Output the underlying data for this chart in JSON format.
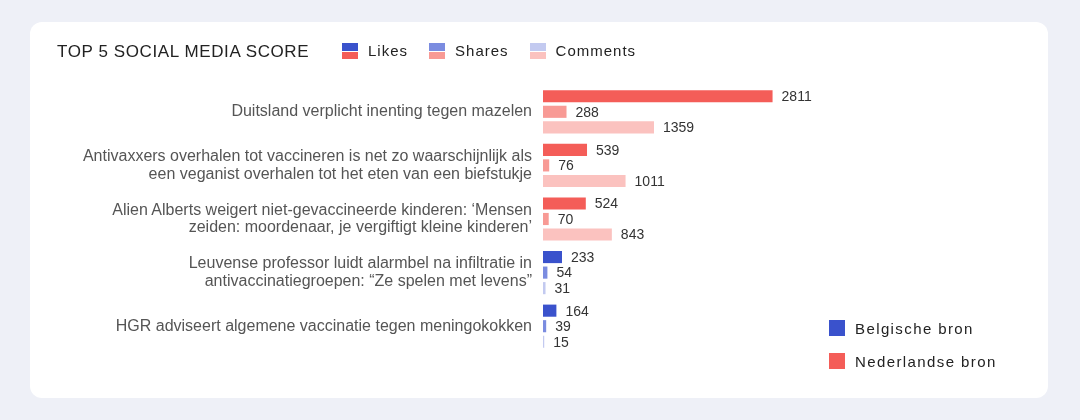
{
  "chart_data": {
    "type": "bar",
    "orientation": "horizontal",
    "title": "TOP 5 SOCIAL MEDIA SCORE",
    "categories": [
      "Duitsland verplicht inenting tegen mazelen",
      "Antivaxxers overhalen tot vaccineren is net zo waarschijnlijk als een veganist overhalen tot het eten van een biefstukje",
      "Alien Alberts weigert niet-gevaccineerde kinderen: ‘Mensen zeiden: moordenaar, je vergiftigt kleine kinderen’",
      "Leuvense professor luidt alarmbel na infiltratie in antivaccinatiegroepen: “Ze spelen met levens”",
      "HGR adviseert algemene vaccinatie tegen meningokokken"
    ],
    "series": [
      {
        "name": "Likes",
        "colors": [
          "#f45d58",
          "#f45d58",
          "#f45d58",
          "#3a52cc",
          "#3a52cc"
        ],
        "values": [
          2811,
          539,
          524,
          233,
          164
        ]
      },
      {
        "name": "Shares",
        "colors": [
          "#f89a95",
          "#f89a95",
          "#f89a95",
          "#7b8ce0",
          "#7b8ce0"
        ],
        "values": [
          288,
          76,
          70,
          54,
          39
        ]
      },
      {
        "name": "Comments",
        "colors": [
          "#fbc2bf",
          "#fbc2bf",
          "#fbc2bf",
          "#c3caf0",
          "#c3caf0"
        ],
        "values": [
          1359,
          1011,
          843,
          31,
          15
        ]
      }
    ],
    "data_labels": true,
    "legend": "top",
    "annotations": [
      "Belgische bron",
      "Nederlandse bron"
    ]
  }
}
